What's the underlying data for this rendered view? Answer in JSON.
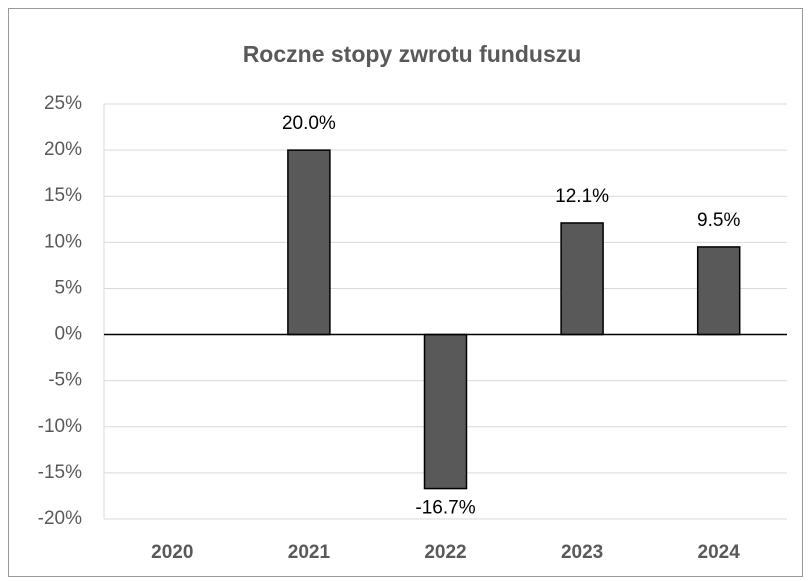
{
  "chart_data": {
    "type": "bar",
    "title": "Roczne stopy zwrotu funduszu",
    "categories": [
      "2020",
      "2021",
      "2022",
      "2023",
      "2024"
    ],
    "values": [
      null,
      20.0,
      -16.7,
      12.1,
      9.5
    ],
    "value_labels": [
      null,
      "20.0%",
      "-16.7%",
      "12.1%",
      "9.5%"
    ],
    "color": "#595959",
    "ylim": [
      -20,
      25
    ],
    "yticks": [
      {
        "value": -20,
        "label": "-20%"
      },
      {
        "value": -15,
        "label": "-15%"
      },
      {
        "value": -10,
        "label": "-10%"
      },
      {
        "value": -5,
        "label": "-5%"
      },
      {
        "value": 0,
        "label": "0%"
      },
      {
        "value": 5,
        "label": "5%"
      },
      {
        "value": 10,
        "label": "10%"
      },
      {
        "value": 15,
        "label": "15%"
      },
      {
        "value": 20,
        "label": "20%"
      },
      {
        "value": 25,
        "label": "25%"
      }
    ],
    "grid": true
  }
}
